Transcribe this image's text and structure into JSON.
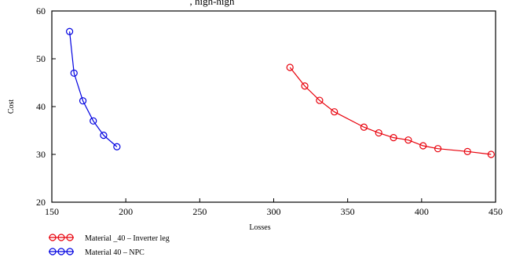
{
  "chart_data": {
    "type": "line",
    "title": ", high-high",
    "xlabel": "Losses",
    "ylabel": "Cost",
    "xlim": [
      150,
      450
    ],
    "ylim": [
      20,
      60
    ],
    "x_ticks": [
      "150",
      "200",
      "250",
      "300",
      "350",
      "400",
      "450"
    ],
    "y_ticks": [
      "20",
      "30",
      "40",
      "50",
      "60"
    ],
    "grid": false,
    "legend_position": "bottom-left, below plot",
    "series": [
      {
        "name": "Material _40 – Inverter leg",
        "color": "#e8000b",
        "marker": "circle",
        "x": [
          311,
          321,
          331,
          341,
          361,
          371,
          381,
          391,
          401,
          411,
          431,
          447
        ],
        "y": [
          48.2,
          44.3,
          41.3,
          38.9,
          35.7,
          34.5,
          33.5,
          33.0,
          31.8,
          31.2,
          30.6,
          30.0
        ]
      },
      {
        "name": "Material  40 – NPC",
        "color": "#0000e0",
        "marker": "circle",
        "x": [
          162,
          165,
          171,
          178,
          185,
          194
        ],
        "y": [
          55.7,
          47.0,
          41.2,
          37.0,
          34.0,
          31.6
        ]
      }
    ]
  }
}
